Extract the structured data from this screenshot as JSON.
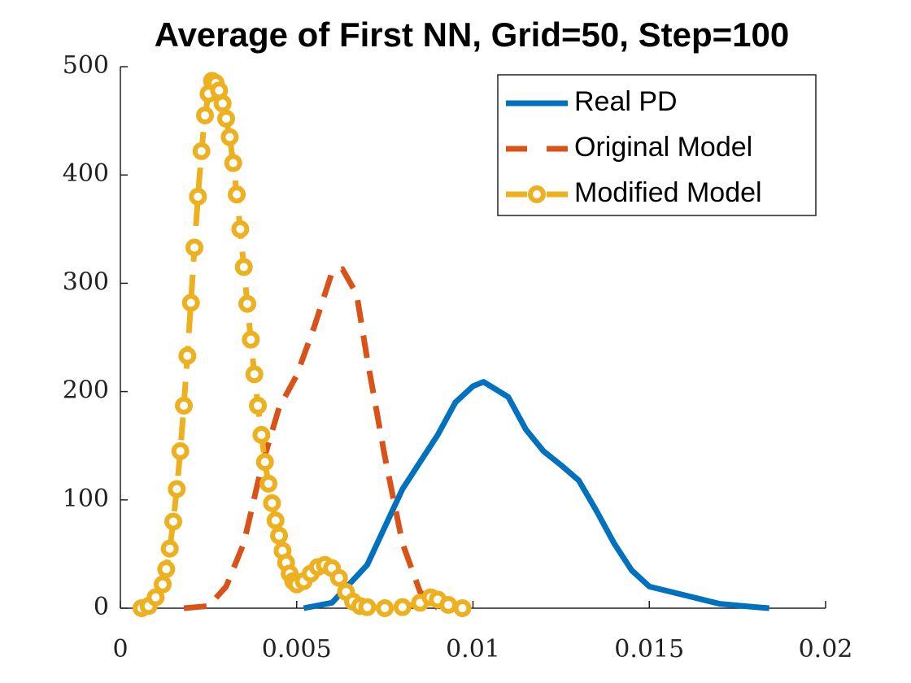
{
  "chart_data": {
    "type": "line",
    "title": "Average of First NN, Grid=50, Step=100",
    "xlim": [
      0,
      0.02
    ],
    "xticks": [
      0,
      0.005,
      0.01,
      0.015,
      0.02
    ],
    "ylim": [
      0,
      500
    ],
    "yticks": [
      0,
      100,
      200,
      300,
      400,
      500
    ],
    "legend": "upper right",
    "series": [
      {
        "name": "Real PD",
        "color": "#0072BD",
        "style": "solid",
        "x": [
          0.0052,
          0.006,
          0.007,
          0.008,
          0.009,
          0.0095,
          0.01,
          0.0103,
          0.011,
          0.0115,
          0.012,
          0.0125,
          0.013,
          0.0135,
          0.014,
          0.0145,
          0.015,
          0.016,
          0.017,
          0.018,
          0.0184
        ],
        "values": [
          0,
          5,
          40,
          110,
          160,
          190,
          205,
          209,
          195,
          165,
          145,
          132,
          118,
          90,
          60,
          35,
          20,
          12,
          4,
          1,
          0
        ]
      },
      {
        "name": "Original Model",
        "color": "#D95319",
        "style": "dashed",
        "x": [
          0.0018,
          0.0025,
          0.003,
          0.0035,
          0.004,
          0.0045,
          0.005,
          0.0055,
          0.006,
          0.0063,
          0.0067,
          0.007,
          0.0075,
          0.008,
          0.0085,
          0.009
        ],
        "values": [
          0,
          2,
          20,
          60,
          130,
          185,
          215,
          260,
          310,
          313,
          290,
          230,
          140,
          60,
          15,
          0
        ]
      },
      {
        "name": "Modified Model",
        "color": "#EDB120",
        "style": "dashed",
        "marker": "o",
        "x": [
          0.0006,
          0.0008,
          0.001,
          0.0012,
          0.0013,
          0.0014,
          0.0015,
          0.0016,
          0.0017,
          0.0018,
          0.0019,
          0.002,
          0.0021,
          0.0022,
          0.0023,
          0.0024,
          0.0025,
          0.0026,
          0.0027,
          0.0028,
          0.0029,
          0.003,
          0.0031,
          0.0032,
          0.0033,
          0.0034,
          0.0035,
          0.0036,
          0.0037,
          0.0038,
          0.0039,
          0.004,
          0.0041,
          0.0042,
          0.0043,
          0.0044,
          0.0045,
          0.0046,
          0.0047,
          0.0048,
          0.0049,
          0.005,
          0.0052,
          0.0054,
          0.0056,
          0.0058,
          0.006,
          0.0062,
          0.0064,
          0.0066,
          0.0068,
          0.007,
          0.0075,
          0.008,
          0.0085,
          0.0088,
          0.009,
          0.0093,
          0.0097
        ],
        "values": [
          0,
          2,
          10,
          22,
          36,
          55,
          80,
          110,
          145,
          187,
          233,
          282,
          333,
          380,
          422,
          455,
          475,
          487,
          485,
          478,
          466,
          452,
          435,
          411,
          382,
          350,
          315,
          281,
          248,
          216,
          187,
          160,
          135,
          115,
          97,
          81,
          67,
          53,
          42,
          32,
          25,
          22,
          25,
          32,
          38,
          40,
          37,
          28,
          15,
          6,
          2,
          1,
          0,
          1,
          5,
          10,
          8,
          3,
          0
        ]
      }
    ]
  }
}
